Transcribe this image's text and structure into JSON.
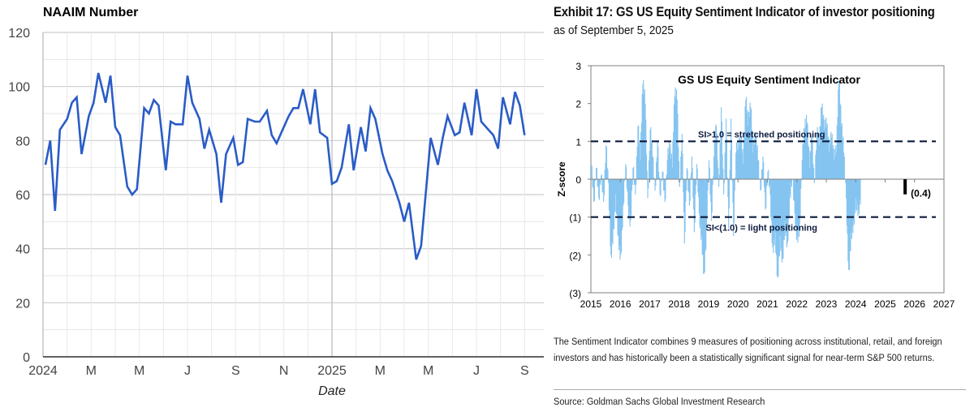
{
  "chart_data": [
    {
      "id": "naaim",
      "type": "line",
      "title": "NAAIM Number",
      "xlabel": "Date",
      "ylabel": "",
      "ylim": [
        0,
        120
      ],
      "yticks": [
        0,
        20,
        40,
        60,
        80,
        100,
        120
      ],
      "xticks": [
        {
          "label": "2024",
          "month_index": 0
        },
        {
          "label": "M",
          "month_index": 2
        },
        {
          "label": "M",
          "month_index": 4
        },
        {
          "label": "J",
          "month_index": 6
        },
        {
          "label": "S",
          "month_index": 8
        },
        {
          "label": "N",
          "month_index": 10
        },
        {
          "label": "2025",
          "month_index": 12
        },
        {
          "label": "M",
          "month_index": 14
        },
        {
          "label": "M",
          "month_index": 16
        },
        {
          "label": "J",
          "month_index": 18
        },
        {
          "label": "S",
          "month_index": 20
        }
      ],
      "x_unit": "months since Jan 2024 (weekly observations)",
      "grid": true,
      "line_color": "#2a5cc7",
      "series": [
        {
          "name": "NAAIM Number",
          "x": [
            0.1,
            0.3,
            0.5,
            0.7,
            1.0,
            1.2,
            1.4,
            1.6,
            1.9,
            2.1,
            2.3,
            2.6,
            2.8,
            3.0,
            3.2,
            3.5,
            3.7,
            3.9,
            4.2,
            4.4,
            4.6,
            4.8,
            5.1,
            5.3,
            5.5,
            5.8,
            6.0,
            6.2,
            6.5,
            6.7,
            6.9,
            7.2,
            7.4,
            7.6,
            7.9,
            8.1,
            8.3,
            8.5,
            8.8,
            9.0,
            9.3,
            9.5,
            9.7,
            9.9,
            10.2,
            10.4,
            10.6,
            10.8,
            11.1,
            11.3,
            11.5,
            11.8,
            12.0,
            12.2,
            12.4,
            12.7,
            12.9,
            13.2,
            13.4,
            13.6,
            13.8,
            14.1,
            14.3,
            14.5,
            14.8,
            15.0,
            15.2,
            15.5,
            15.7,
            15.9,
            16.1,
            16.4,
            16.6,
            16.8,
            17.1,
            17.3,
            17.5,
            17.8,
            18.0,
            18.2,
            18.4,
            18.7,
            18.9,
            19.1,
            19.4,
            19.6,
            19.8,
            20.0
          ],
          "y": [
            71,
            80,
            54,
            84,
            88,
            94,
            96,
            75,
            89,
            94,
            105,
            94,
            104,
            85,
            82,
            63,
            60,
            62,
            92,
            90,
            95,
            93,
            69,
            87,
            86,
            86,
            104,
            94,
            88,
            77,
            84,
            75,
            57,
            75,
            81,
            71,
            72,
            88,
            87,
            87,
            91,
            82,
            79,
            83,
            89,
            92,
            92,
            99,
            86,
            99,
            83,
            81,
            64,
            65,
            70,
            86,
            69,
            85,
            76,
            92,
            88,
            75,
            69,
            65,
            57,
            50,
            57,
            36,
            41,
            61,
            81,
            71,
            81,
            89,
            82,
            83,
            94,
            82,
            99,
            87,
            85,
            82,
            77,
            96,
            86,
            98,
            93,
            82
          ]
        }
      ]
    },
    {
      "id": "gs-sentiment",
      "type": "bar",
      "title": "GS US Equity Sentiment Indicator",
      "xlabel": "",
      "ylabel": "Z-score",
      "ylim": [
        -3,
        3
      ],
      "yticks": [
        {
          "value": 3,
          "label": "3"
        },
        {
          "value": 2,
          "label": "2"
        },
        {
          "value": 1,
          "label": "1"
        },
        {
          "value": 0,
          "label": "0"
        },
        {
          "value": -1,
          "label": "(1)"
        },
        {
          "value": -2,
          "label": "(2)"
        },
        {
          "value": -3,
          "label": "(3)"
        }
      ],
      "xlim": [
        2015,
        2027
      ],
      "xticks": [
        "2015",
        "2016",
        "2017",
        "2018",
        "2019",
        "2020",
        "2021",
        "2022",
        "2023",
        "2024",
        "2025",
        "2026",
        "2027"
      ],
      "bar_color": "#85c4f0",
      "latest_color": "#000000",
      "reference_lines": [
        {
          "value": 1,
          "label": "SI>1.0 = stretched positioning"
        },
        {
          "value": -1,
          "label": "SI<(1.0) = light positioning"
        }
      ],
      "latest": {
        "x": 2025.68,
        "value": -0.4,
        "label": "(0.4)"
      },
      "series": [
        {
          "name": "Sentiment Indicator (approx., monthly)",
          "x_start": 2015.0,
          "x_step": 0.0833,
          "values": [
            0.5,
            -0.7,
            0.4,
            -0.6,
            0.2,
            -0.7,
            1.0,
            -0.2,
            -2.1,
            -1.4,
            -0.5,
            -1.6,
            -2.1,
            -0.8,
            0.5,
            -0.8,
            -1.2,
            0.4,
            -0.5,
            1.5,
            0.6,
            2.6,
            2.1,
            -0.6,
            1.4,
            0.7,
            -0.4,
            1.1,
            -0.5,
            0.3,
            -0.7,
            0.6,
            0.9,
            0.4,
            2.3,
            2.2,
            -0.3,
            1.3,
            -1.8,
            0.4,
            -0.8,
            0.7,
            -1.5,
            0.5,
            -1.0,
            -1.6,
            -2.6,
            -1.4,
            0.6,
            -1.2,
            0.7,
            1.5,
            -0.3,
            2.0,
            -0.5,
            1.7,
            -1.4,
            1.7,
            -1.6,
            0.8,
            0.9,
            1.1,
            0.5,
            2.2,
            1.5,
            2.0,
            0.8,
            1.2,
            0.6,
            -0.4,
            0.7,
            -0.9,
            0.3,
            -0.5,
            -1.9,
            -1.5,
            -2.7,
            -1.6,
            -2.2,
            -1.2,
            -1.8,
            -0.5,
            0.1,
            -1.0,
            -1.6,
            -1.3,
            0.6,
            1.4,
            1.6,
            0.4,
            1.2,
            -0.2,
            1.3,
            1.0,
            2.0,
            1.4,
            1.5,
            0.8,
            1.2,
            0.6,
            0.8,
            2.7,
            1.5,
            0.8,
            -0.6,
            -2.5,
            -1.5,
            -1.2,
            -0.6,
            -0.9,
            -0.4
          ]
        }
      ]
    }
  ],
  "right_panel": {
    "exhibit_title": "Exhibit 17: GS US Equity Sentiment Indicator of investor positioning",
    "exhibit_subtitle": "as of September 5, 2025",
    "caption": "The Sentiment Indicator combines 9 measures of positioning across institutional, retail, and foreign investors and has historically been a statistically significant signal for near-term S&P 500 returns.",
    "source": "Source: Goldman Sachs Global Investment Research"
  }
}
